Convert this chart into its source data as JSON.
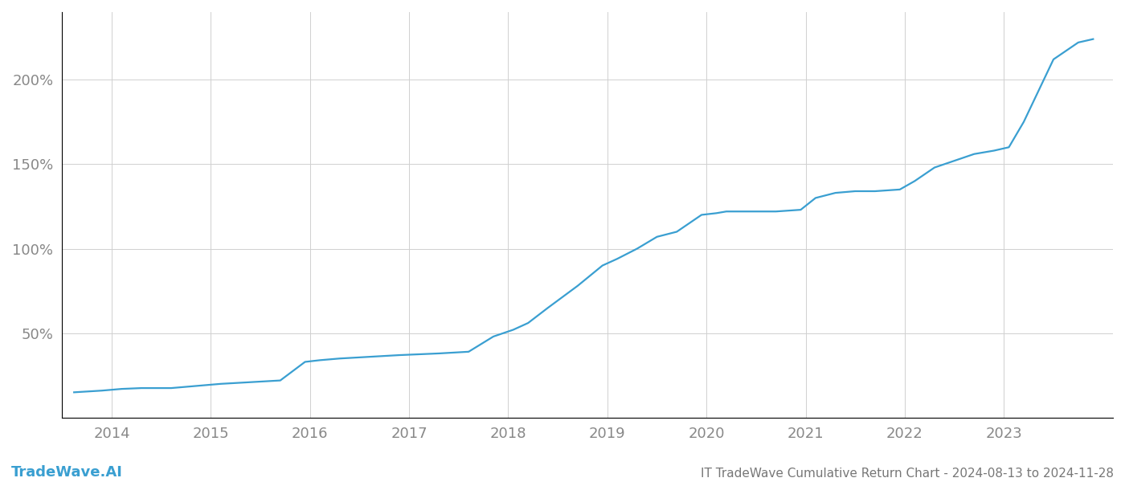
{
  "title": "IT TradeWave Cumulative Return Chart - 2024-08-13 to 2024-11-28",
  "watermark": "TradeWave.AI",
  "line_color": "#3a9fd1",
  "background_color": "#ffffff",
  "grid_color": "#d0d0d0",
  "x_years": [
    2014,
    2015,
    2016,
    2017,
    2018,
    2019,
    2020,
    2021,
    2022,
    2023
  ],
  "x_data": [
    2013.62,
    2013.9,
    2014.1,
    2014.3,
    2014.6,
    2014.9,
    2015.1,
    2015.4,
    2015.7,
    2015.95,
    2016.1,
    2016.3,
    2016.6,
    2016.9,
    2017.1,
    2017.3,
    2017.6,
    2017.85,
    2018.05,
    2018.2,
    2018.4,
    2018.7,
    2018.95,
    2019.1,
    2019.3,
    2019.5,
    2019.7,
    2019.95,
    2020.1,
    2020.2,
    2020.4,
    2020.7,
    2020.95,
    2021.1,
    2021.3,
    2021.5,
    2021.7,
    2021.95,
    2022.1,
    2022.3,
    2022.5,
    2022.7,
    2022.9,
    2023.05,
    2023.2,
    2023.5,
    2023.75,
    2023.9
  ],
  "y_data": [
    15,
    16,
    17,
    17.5,
    17.5,
    19,
    20,
    21,
    22,
    33,
    34,
    35,
    36,
    37,
    37.5,
    38,
    39,
    48,
    52,
    56,
    65,
    78,
    90,
    94,
    100,
    107,
    110,
    120,
    121,
    122,
    122,
    122,
    123,
    130,
    133,
    134,
    134,
    135,
    140,
    148,
    152,
    156,
    158,
    160,
    175,
    212,
    222,
    224
  ],
  "ylim": [
    0,
    240
  ],
  "yticks": [
    50,
    100,
    150,
    200
  ],
  "ytick_labels": [
    "50%",
    "100%",
    "150%",
    "200%"
  ],
  "xlim": [
    2013.5,
    2024.1
  ],
  "title_color": "#777777",
  "axis_color": "#999999",
  "left_spine_color": "#000000",
  "bottom_spine_color": "#000000",
  "tick_color": "#888888",
  "watermark_color": "#3a9fd1",
  "title_fontsize": 11,
  "watermark_fontsize": 13,
  "tick_fontsize": 13,
  "line_width": 1.6
}
